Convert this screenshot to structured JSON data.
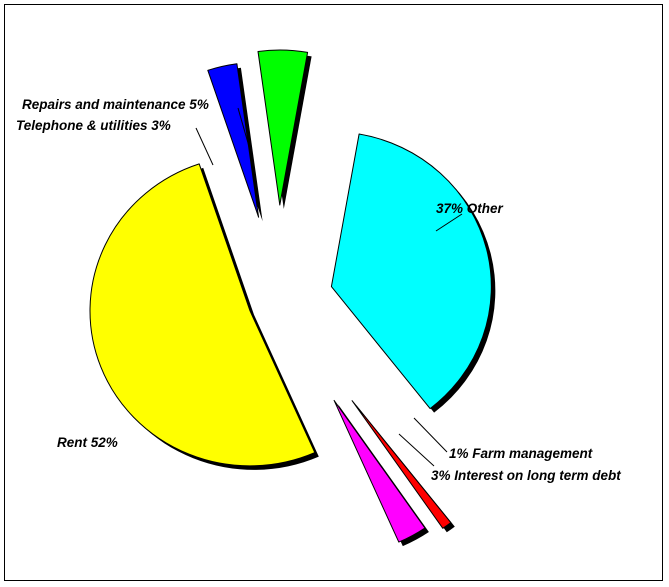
{
  "chart_data": {
    "type": "pie",
    "style": "exploded 3D pie with drop shadow",
    "slices": [
      {
        "name": "Other",
        "value": 37,
        "label": "37% Other",
        "color": "#00FFFF"
      },
      {
        "name": "Farm management",
        "value": 1,
        "label": "1% Farm management",
        "color": "#FF0000"
      },
      {
        "name": "Interest on long term debt",
        "value": 3,
        "label": "3% Interest on long term debt",
        "color": "#FF00FF"
      },
      {
        "name": "Rent",
        "value": 52,
        "label": "Rent 52%",
        "color": "#FFFF00"
      },
      {
        "name": "Telephone & utilities",
        "value": 3,
        "label": "Telephone & utilities 3%",
        "color": "#0000FF"
      },
      {
        "name": "Repairs and maintenance",
        "value": 5,
        "label": "Repairs and maintenance 5%",
        "color": "#00FF00"
      }
    ]
  }
}
